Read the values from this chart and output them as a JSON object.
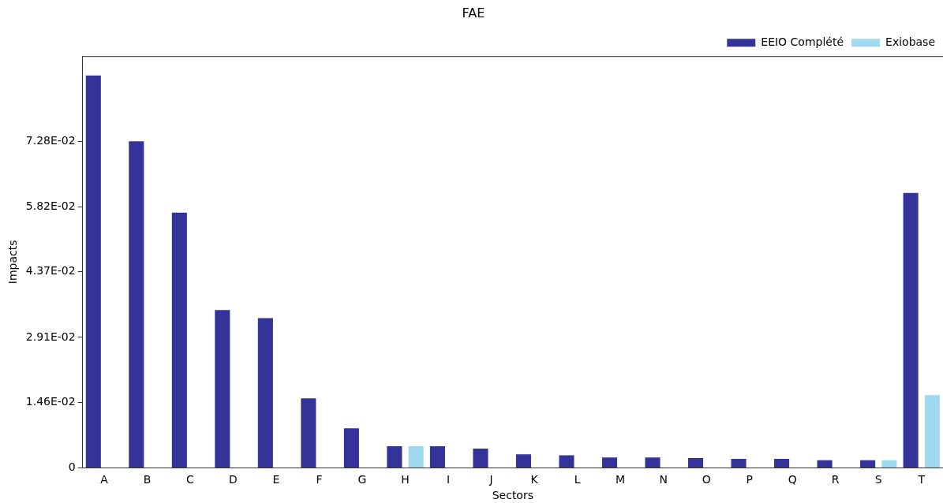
{
  "chart_data": {
    "type": "bar",
    "title": "FAE",
    "xlabel": "Sectors",
    "ylabel": "Impacts",
    "categories": [
      "A",
      "B",
      "C",
      "D",
      "E",
      "F",
      "G",
      "H",
      "I",
      "J",
      "K",
      "L",
      "M",
      "N",
      "O",
      "P",
      "Q",
      "R",
      "S",
      "T"
    ],
    "series": [
      {
        "name": "EEIO Complété",
        "color": "#333399",
        "values": [
          0.0875,
          0.0728,
          0.0569,
          0.0352,
          0.0334,
          0.0155,
          0.0088,
          0.0048,
          0.0048,
          0.0043,
          0.003,
          0.0028,
          0.0023,
          0.0023,
          0.0022,
          0.002,
          0.002,
          0.0017,
          0.0017,
          0.0613
        ]
      },
      {
        "name": "Exiobase",
        "color": "#a0d8ef",
        "values": [
          0,
          0,
          0,
          0,
          0,
          0,
          0,
          0.0048,
          0,
          0,
          0,
          0,
          0,
          0,
          0,
          0,
          0,
          0,
          0.0017,
          0.0162
        ]
      }
    ],
    "ylim": [
      0,
      0.0918
    ],
    "yticks": [
      0,
      {
        "value": 0.0146,
        "label": "1.46E-02"
      },
      {
        "value": 0.0291,
        "label": "2.91E-02"
      },
      {
        "value": 0.0437,
        "label": "4.37E-02"
      },
      {
        "value": 0.0582,
        "label": "5.82E-02"
      },
      {
        "value": 0.0728,
        "label": "7.28E-02"
      }
    ],
    "grid": false,
    "legend": "top right"
  }
}
